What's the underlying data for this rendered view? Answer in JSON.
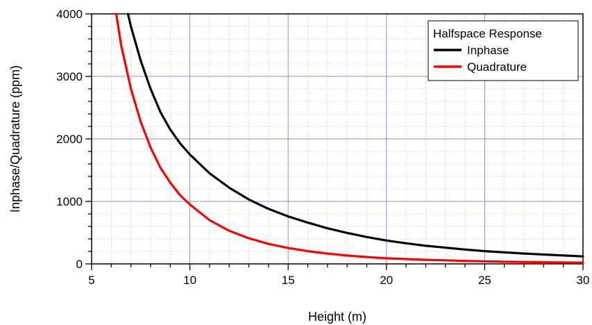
{
  "chart_data": {
    "type": "line",
    "xlabel": "Height (m)",
    "ylabel": "Inphase/Quadrature (ppm)",
    "xlim": [
      5,
      30
    ],
    "ylim": [
      0,
      4000
    ],
    "x_ticks": [
      5,
      10,
      15,
      20,
      25,
      30
    ],
    "y_ticks": [
      0,
      1000,
      2000,
      3000,
      4000
    ],
    "x_tick_labels": [
      "5",
      "10",
      "15",
      "20",
      "25",
      "30"
    ],
    "y_tick_labels": [
      "0",
      "1000",
      "2000",
      "3000",
      "4000"
    ],
    "grid": true,
    "legend": {
      "title": "Halfspace Response",
      "placement": "top-right"
    },
    "series": [
      {
        "name": "Inphase",
        "color": "#000000",
        "x": [
          6.85,
          7,
          7.5,
          8,
          8.5,
          9,
          9.5,
          10,
          11,
          12,
          13,
          14,
          15,
          16,
          17,
          18,
          19,
          20,
          21,
          22,
          23,
          24,
          25,
          26,
          27,
          28,
          29,
          30
        ],
        "y": [
          4000,
          3800,
          3250,
          2800,
          2430,
          2150,
          1930,
          1750,
          1450,
          1220,
          1030,
          880,
          760,
          660,
          570,
          495,
          430,
          375,
          330,
          290,
          260,
          230,
          205,
          185,
          165,
          150,
          135,
          120
        ]
      },
      {
        "name": "Quadrature",
        "color": "#ff0000",
        "x": [
          6.25,
          6.5,
          7,
          7.5,
          8,
          8.5,
          9,
          9.5,
          10,
          11,
          12,
          13,
          14,
          15,
          16,
          17,
          18,
          19,
          20,
          22,
          24,
          26,
          28,
          30
        ],
        "y": [
          4000,
          3500,
          2800,
          2270,
          1860,
          1540,
          1300,
          1100,
          950,
          700,
          530,
          410,
          320,
          255,
          205,
          165,
          135,
          110,
          90,
          65,
          48,
          35,
          27,
          20
        ]
      }
    ]
  }
}
